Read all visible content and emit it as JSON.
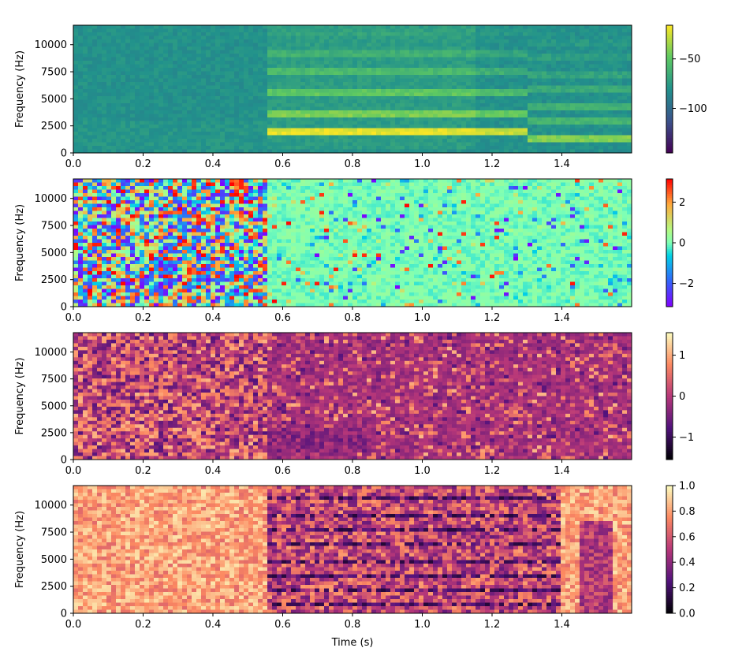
{
  "chart_data": [
    {
      "type": "heatmap",
      "title": "",
      "xlabel": "",
      "ylabel": "Frequency (Hz)",
      "xlim": [
        0,
        1.6
      ],
      "ylim": [
        0,
        11800
      ],
      "xticks": [
        0.0,
        0.2,
        0.4,
        0.6,
        0.8,
        1.0,
        1.2,
        1.4
      ],
      "xtick_labels": [
        "0.0",
        "0.2",
        "0.4",
        "0.6",
        "0.8",
        "1.0",
        "1.2",
        "1.4"
      ],
      "yticks": [
        0,
        2500,
        5000,
        7500,
        10000
      ],
      "ytick_labels": [
        "0",
        "2500",
        "5000",
        "7500",
        "10000"
      ],
      "colormap": "viridis",
      "colorbar": {
        "range": [
          -145,
          -16
        ],
        "ticks": [
          -100,
          -50
        ],
        "tick_labels": [
          "−100",
          "−50"
        ]
      }
    },
    {
      "type": "heatmap",
      "title": "",
      "xlabel": "",
      "ylabel": "Frequency (Hz)",
      "xlim": [
        0,
        1.6
      ],
      "ylim": [
        0,
        11800
      ],
      "xticks": [
        0.0,
        0.2,
        0.4,
        0.6,
        0.8,
        1.0,
        1.2,
        1.4
      ],
      "xtick_labels": [
        "0.0",
        "0.2",
        "0.4",
        "0.6",
        "0.8",
        "1.0",
        "1.2",
        "1.4"
      ],
      "yticks": [
        0,
        2500,
        5000,
        7500,
        10000
      ],
      "ytick_labels": [
        "0",
        "2500",
        "5000",
        "7500",
        "10000"
      ],
      "colormap": "rainbow",
      "colorbar": {
        "range": [
          -3.14159,
          3.14159
        ],
        "ticks": [
          -2,
          0,
          2
        ],
        "tick_labels": [
          "−2",
          "0",
          "2"
        ]
      }
    },
    {
      "type": "heatmap",
      "title": "",
      "xlabel": "",
      "ylabel": "Frequency (Hz)",
      "xlim": [
        0,
        1.6
      ],
      "ylim": [
        0,
        11800
      ],
      "xticks": [
        0.0,
        0.2,
        0.4,
        0.6,
        0.8,
        1.0,
        1.2,
        1.4
      ],
      "xtick_labels": [
        "0.0",
        "0.2",
        "0.4",
        "0.6",
        "0.8",
        "1.0",
        "1.2",
        "1.4"
      ],
      "yticks": [
        0,
        2500,
        5000,
        7500,
        10000
      ],
      "ytick_labels": [
        "0",
        "2500",
        "5000",
        "7500",
        "10000"
      ],
      "colormap": "magma",
      "colorbar": {
        "range": [
          -1.55,
          1.55
        ],
        "ticks": [
          -1,
          0,
          1
        ],
        "tick_labels": [
          "−1",
          "0",
          "1"
        ]
      }
    },
    {
      "type": "heatmap",
      "title": "",
      "xlabel": "Time (s)",
      "ylabel": "Frequency (Hz)",
      "xlim": [
        0,
        1.6
      ],
      "ylim": [
        0,
        11800
      ],
      "xticks": [
        0.0,
        0.2,
        0.4,
        0.6,
        0.8,
        1.0,
        1.2,
        1.4
      ],
      "xtick_labels": [
        "0.0",
        "0.2",
        "0.4",
        "0.6",
        "0.8",
        "1.0",
        "1.2",
        "1.4"
      ],
      "yticks": [
        0,
        2500,
        5000,
        7500,
        10000
      ],
      "ytick_labels": [
        "0",
        "2500",
        "5000",
        "7500",
        "10000"
      ],
      "colormap": "magma",
      "colorbar": {
        "range": [
          0,
          1
        ],
        "ticks": [
          0.0,
          0.2,
          0.4,
          0.6,
          0.8,
          1.0
        ],
        "tick_labels": [
          "0.0",
          "0.2",
          "0.4",
          "0.6",
          "0.8",
          "1.0"
        ]
      }
    }
  ]
}
